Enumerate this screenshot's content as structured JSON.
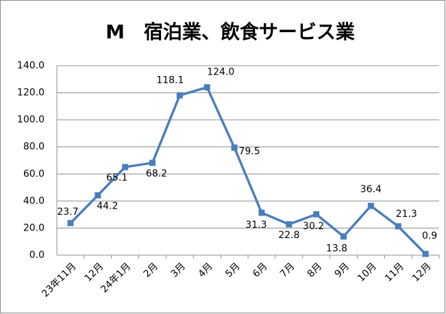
{
  "chart_data": {
    "type": "line",
    "title": "M　宿泊業、飲食サービス業",
    "categories": [
      "23年11月",
      "12月",
      "24年1月",
      "2月",
      "3月",
      "4月",
      "5月",
      "6月",
      "7月",
      "8月",
      "9月",
      "10月",
      "11月",
      "12月"
    ],
    "values": [
      23.7,
      44.2,
      65.1,
      68.2,
      118.1,
      124.0,
      79.5,
      31.3,
      22.8,
      30.2,
      13.8,
      36.4,
      21.3,
      0.9
    ],
    "value_labels": [
      "23.7",
      "44.2",
      "65.1",
      "68.2",
      "118.1",
      "124.0",
      "79.5",
      "31.3",
      "22.8",
      "30.2",
      "13.8",
      "36.4",
      "21.3",
      "0.9"
    ],
    "color": "#4a7ebb",
    "ylim": [
      0,
      140
    ],
    "yticks": [
      {
        "value": 0,
        "label": "0.0"
      },
      {
        "value": 20,
        "label": "20.0"
      },
      {
        "value": 40,
        "label": "40.0"
      },
      {
        "value": 60,
        "label": "60.0"
      },
      {
        "value": 80,
        "label": "80.0"
      },
      {
        "value": 100,
        "label": "100.0"
      },
      {
        "value": 120,
        "label": "120.0"
      },
      {
        "value": 140,
        "label": "140.0"
      }
    ],
    "grid": true
  }
}
